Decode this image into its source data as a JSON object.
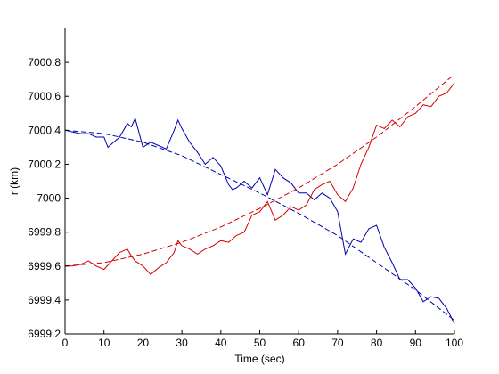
{
  "chart_data": {
    "type": "line",
    "xlabel": "Time (sec)",
    "ylabel": "r (km)",
    "xlim": [
      0,
      100
    ],
    "ylim": [
      6999.2,
      7001.0
    ],
    "xticks": [
      0,
      10,
      20,
      30,
      40,
      50,
      60,
      70,
      80,
      90,
      100
    ],
    "yticks": [
      6999.2,
      6999.4,
      6999.6,
      6999.8,
      7000,
      7000.2,
      7000.4,
      7000.6,
      7000.8
    ],
    "ytick_labels": [
      "6999.2",
      "6999.4",
      "6999.6",
      "6999.8",
      "7000",
      "7000.2",
      "7000.4",
      "7000.6",
      "7000.8"
    ],
    "grid": false,
    "series": [
      {
        "color": "#0000b0",
        "style": "solid",
        "x": [
          0,
          2,
          4,
          6,
          8,
          10,
          11,
          12,
          14,
          16,
          17,
          18,
          20,
          22,
          24,
          26,
          28,
          29,
          30,
          32,
          34,
          36,
          38,
          40,
          42,
          43,
          44,
          46,
          48,
          50,
          52,
          54,
          56,
          58,
          60,
          62,
          64,
          66,
          68,
          70,
          72,
          74,
          76,
          78,
          80,
          82,
          84,
          86,
          88,
          90,
          92,
          94,
          96,
          98,
          100
        ],
        "y": [
          7000.4,
          7000.39,
          7000.38,
          7000.38,
          7000.36,
          7000.36,
          7000.3,
          7000.32,
          7000.36,
          7000.44,
          7000.42,
          7000.47,
          7000.3,
          7000.33,
          7000.31,
          7000.29,
          7000.4,
          7000.46,
          7000.41,
          7000.33,
          7000.27,
          7000.2,
          7000.24,
          7000.19,
          7000.08,
          7000.05,
          7000.06,
          7000.1,
          7000.06,
          7000.12,
          7000.02,
          7000.17,
          7000.12,
          7000.09,
          7000.03,
          7000.03,
          6999.99,
          7000.03,
          7000.0,
          6999.92,
          6999.67,
          6999.76,
          6999.74,
          6999.82,
          6999.84,
          6999.71,
          6999.62,
          6999.52,
          6999.52,
          6999.47,
          6999.39,
          6999.42,
          6999.41,
          6999.35,
          6999.26
        ]
      },
      {
        "color": "#d40000",
        "style": "solid",
        "x": [
          0,
          2,
          4,
          6,
          8,
          10,
          12,
          14,
          16,
          17,
          18,
          20,
          22,
          24,
          26,
          28,
          29,
          30,
          32,
          34,
          36,
          38,
          40,
          42,
          44,
          46,
          48,
          50,
          52,
          54,
          56,
          58,
          60,
          62,
          64,
          66,
          68,
          70,
          72,
          74,
          76,
          78,
          80,
          82,
          84,
          86,
          88,
          90,
          92,
          94,
          96,
          98,
          100
        ],
        "y": [
          6999.6,
          6999.6,
          6999.61,
          6999.63,
          6999.6,
          6999.58,
          6999.63,
          6999.68,
          6999.7,
          6999.66,
          6999.63,
          6999.6,
          6999.55,
          6999.59,
          6999.62,
          6999.68,
          6999.75,
          6999.72,
          6999.7,
          6999.67,
          6999.7,
          6999.72,
          6999.75,
          6999.74,
          6999.78,
          6999.8,
          6999.9,
          6999.92,
          6999.98,
          6999.87,
          6999.9,
          6999.95,
          6999.93,
          6999.96,
          7000.05,
          7000.08,
          7000.1,
          7000.02,
          6999.98,
          7000.06,
          7000.2,
          7000.3,
          7000.43,
          7000.41,
          7000.46,
          7000.42,
          7000.48,
          7000.5,
          7000.55,
          7000.54,
          7000.6,
          7000.62,
          7000.68
        ]
      },
      {
        "color": "#0000b0",
        "style": "dashed",
        "x": [
          0,
          10,
          20,
          30,
          40,
          50,
          60,
          70,
          80,
          90,
          100
        ],
        "y": [
          7000.4,
          7000.38,
          7000.33,
          7000.25,
          7000.14,
          7000.03,
          6999.91,
          6999.78,
          6999.62,
          6999.46,
          6999.28
        ]
      },
      {
        "color": "#d40000",
        "style": "dashed",
        "x": [
          0,
          10,
          20,
          30,
          40,
          50,
          60,
          70,
          80,
          90,
          100
        ],
        "y": [
          6999.6,
          6999.62,
          6999.67,
          6999.74,
          6999.83,
          6999.94,
          7000.06,
          7000.2,
          7000.36,
          7000.54,
          7000.73
        ]
      }
    ]
  }
}
